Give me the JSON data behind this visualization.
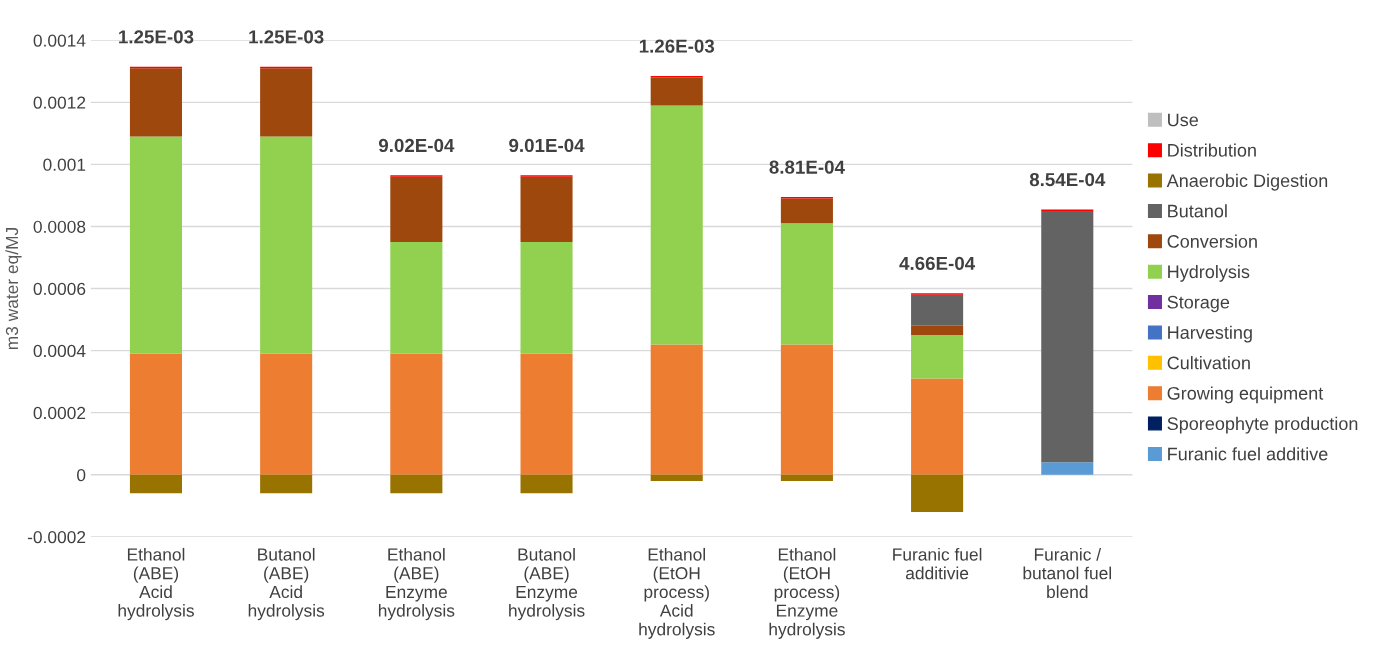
{
  "chart_data": {
    "type": "bar",
    "stacked": true,
    "ylabel": "m3 water eq/MJ",
    "categories": [
      "Ethanol\n(ABE)\nAcid\nhydrolysis",
      "Butanol\n(ABE)\nAcid\nhydrolysis",
      "Ethanol\n(ABE)\nEnzyme\nhydrolysis",
      "Butanol\n(ABE)\nEnzyme\nhydrolysis",
      "Ethanol\n(EtOH\nprocess)\nAcid\nhydrolysis",
      "Ethanol\n(EtOH\nprocess)\nEnzyme\nhydrolysis",
      "Furanic fuel\nadditivie",
      "Furanic /\nbutanol fuel\nblend"
    ],
    "series": [
      {
        "name": "Furanic fuel additive",
        "color": "#5b9bd5",
        "values": [
          0,
          0,
          0,
          0,
          0,
          0,
          0,
          4e-05
        ]
      },
      {
        "name": "Sporeophyte production",
        "color": "#002060",
        "values": [
          0,
          0,
          0,
          0,
          0,
          0,
          0,
          0
        ]
      },
      {
        "name": "Growing equipment",
        "color": "#ed7d31",
        "values": [
          0.00039,
          0.00039,
          0.00039,
          0.00039,
          0.00042,
          0.00042,
          0.00031,
          0
        ]
      },
      {
        "name": "Cultivation",
        "color": "#ffc000",
        "values": [
          0,
          0,
          0,
          0,
          0,
          0,
          0,
          0
        ]
      },
      {
        "name": "Harvesting",
        "color": "#4472c4",
        "values": [
          0,
          0,
          0,
          0,
          0,
          0,
          0,
          0
        ]
      },
      {
        "name": "Storage",
        "color": "#7030a0",
        "values": [
          0,
          0,
          0,
          0,
          0,
          0,
          0,
          0
        ]
      },
      {
        "name": "Hydrolysis",
        "color": "#92d050",
        "values": [
          0.0007,
          0.0007,
          0.00036,
          0.00036,
          0.00077,
          0.00039,
          0.00014,
          0
        ]
      },
      {
        "name": "Conversion",
        "color": "#9e480e",
        "values": [
          0.00022,
          0.00022,
          0.00021,
          0.00021,
          9e-05,
          8e-05,
          3e-05,
          0
        ]
      },
      {
        "name": "Butanol",
        "color": "#636363",
        "values": [
          0,
          0,
          0,
          0,
          0,
          0,
          0.0001,
          0.00081
        ]
      },
      {
        "name": "Anaerobic Digestion",
        "color": "#997300",
        "values": [
          -6e-05,
          -6e-05,
          -6e-05,
          -6e-05,
          -2e-05,
          -2e-05,
          -0.00012,
          0
        ]
      },
      {
        "name": "Distribution",
        "color": "#ff0000",
        "values": [
          5e-06,
          5e-06,
          5e-06,
          5e-06,
          5e-06,
          5e-06,
          5e-06,
          5e-06
        ]
      },
      {
        "name": "Use",
        "color": "#bfbfbf",
        "values": [
          0,
          0,
          0,
          0,
          0,
          0,
          0,
          0
        ]
      }
    ],
    "totals": [
      "1.25E-03",
      "1.25E-03",
      "9.02E-04",
      "9.01E-04",
      "1.26E-03",
      "8.81E-04",
      "4.66E-04",
      "8.54E-04"
    ],
    "ylim": [
      -0.0002,
      0.0014
    ],
    "yticks": [
      -0.0002,
      0,
      0.0002,
      0.0004,
      0.0006,
      0.0008,
      0.001,
      0.0012,
      0.0014
    ],
    "grid": "y",
    "legend": "right"
  }
}
